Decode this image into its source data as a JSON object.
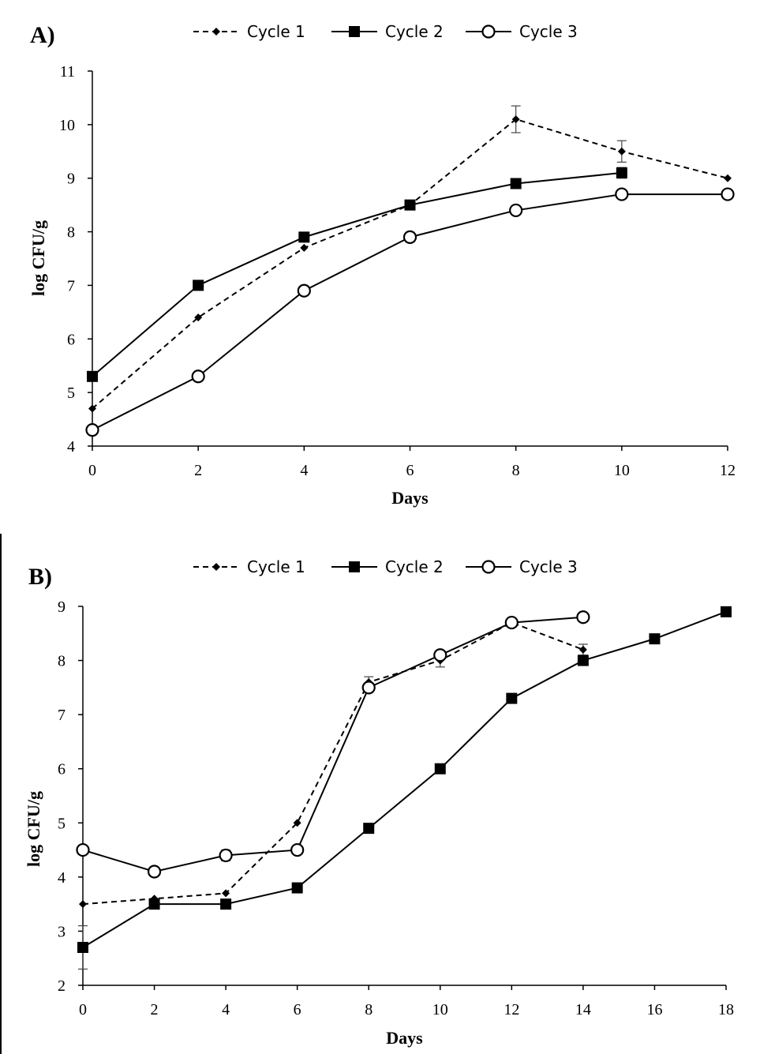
{
  "chart_data": [
    {
      "panel_label": "A)",
      "type": "line",
      "xlabel": "Days",
      "ylabel": "log CFU/g",
      "xlim": [
        0,
        12
      ],
      "ylim": [
        4,
        11
      ],
      "xticks": [
        "0",
        "2",
        "4",
        "6",
        "8",
        "10",
        "12"
      ],
      "yticks": [
        "4",
        "5",
        "6",
        "7",
        "8",
        "9",
        "10",
        "11"
      ],
      "legend_position": "top",
      "grid": false,
      "series": [
        {
          "name": "Cycle 1",
          "style": "dashed",
          "marker": "diamond",
          "x": [
            0,
            2,
            4,
            6,
            8,
            10,
            12
          ],
          "y": [
            4.7,
            6.4,
            7.7,
            8.5,
            10.1,
            9.5,
            9.0
          ],
          "error": [
            0.05,
            0.05,
            0.05,
            0.05,
            0.25,
            0.2,
            0.05
          ]
        },
        {
          "name": "Cycle 2",
          "style": "solid",
          "marker": "square",
          "x": [
            0,
            2,
            4,
            6,
            8,
            10
          ],
          "y": [
            5.3,
            7.0,
            7.9,
            8.5,
            8.9,
            9.1
          ],
          "error": [
            0.05,
            0.05,
            0.05,
            0.05,
            0.05,
            0.1
          ]
        },
        {
          "name": "Cycle 3",
          "style": "solid",
          "marker": "circle",
          "x": [
            0,
            2,
            4,
            6,
            8,
            10,
            12
          ],
          "y": [
            4.3,
            5.3,
            6.9,
            7.9,
            8.4,
            8.7,
            8.7
          ],
          "error": [
            0.05,
            0.05,
            0.05,
            0.05,
            0.05,
            0.05,
            0.05
          ]
        }
      ]
    },
    {
      "panel_label": "B)",
      "type": "line",
      "xlabel": "Days",
      "ylabel": "log CFU/g",
      "xlim": [
        0,
        18
      ],
      "ylim": [
        2,
        9
      ],
      "xticks": [
        "0",
        "2",
        "4",
        "6",
        "8",
        "10",
        "12",
        "14",
        "16",
        "18"
      ],
      "yticks": [
        "2",
        "3",
        "4",
        "5",
        "6",
        "7",
        "8",
        "9"
      ],
      "legend_position": "top",
      "grid": false,
      "series": [
        {
          "name": "Cycle 1",
          "style": "dashed",
          "marker": "diamond",
          "x": [
            0,
            2,
            4,
            6,
            8,
            10,
            12,
            14
          ],
          "y": [
            3.5,
            3.6,
            3.7,
            5.0,
            7.6,
            8.0,
            8.7,
            8.2
          ],
          "error": [
            0.05,
            0.05,
            0.05,
            0.05,
            0.1,
            0.12,
            0.05,
            0.1
          ]
        },
        {
          "name": "Cycle 2",
          "style": "solid",
          "marker": "square",
          "x": [
            0,
            2,
            4,
            6,
            8,
            10,
            12,
            14,
            16,
            18
          ],
          "y": [
            2.7,
            3.5,
            3.5,
            3.8,
            4.9,
            6.0,
            7.3,
            8.0,
            8.4,
            8.9
          ],
          "error": [
            0.4,
            0.05,
            0.05,
            0.05,
            0.05,
            0.05,
            0.05,
            0.05,
            0.05,
            0.05
          ]
        },
        {
          "name": "Cycle 3",
          "style": "solid",
          "marker": "circle",
          "x": [
            0,
            2,
            4,
            6,
            8,
            10,
            12,
            14
          ],
          "y": [
            4.5,
            4.1,
            4.4,
            4.5,
            7.5,
            8.1,
            8.7,
            8.8
          ],
          "error": [
            0.05,
            0.05,
            0.1,
            0.05,
            0.05,
            0.05,
            0.05,
            0.05
          ]
        }
      ]
    }
  ]
}
